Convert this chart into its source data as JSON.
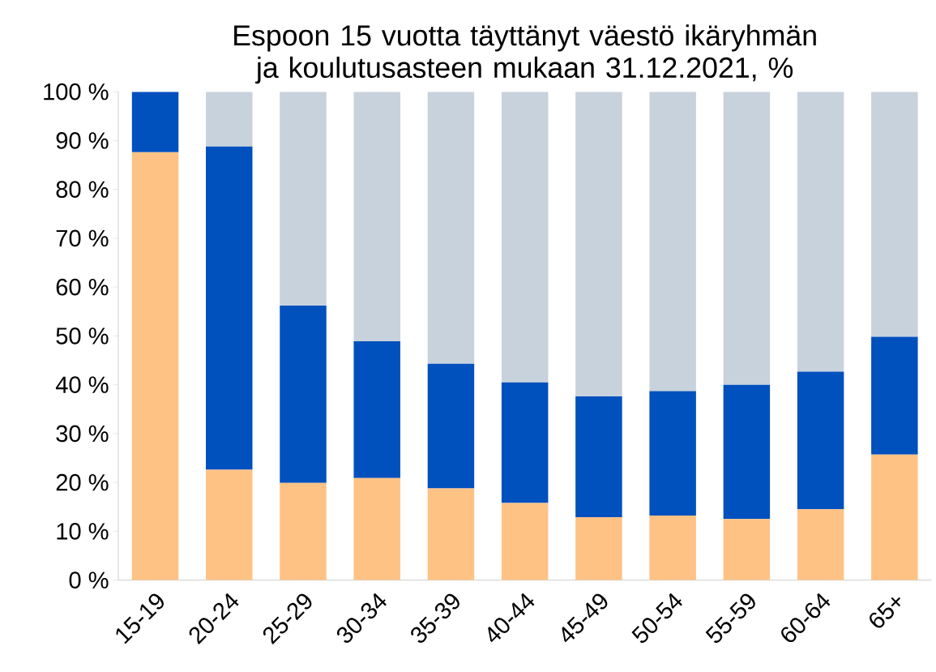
{
  "chart_data": {
    "type": "bar",
    "stacked": true,
    "title": "Espoon 15 vuotta täyttänyt väestö ikäryhmän ja koulutusasteen mukaan 31.12.2021, %",
    "categories": [
      "15-19",
      "20-24",
      "25-29",
      "30-34",
      "35-39",
      "40-44",
      "45-49",
      "50-54",
      "55-59",
      "60-64",
      "65+"
    ],
    "series": [
      {
        "color": "#ffc285",
        "values": [
          87.6,
          22.6,
          19.9,
          20.9,
          18.8,
          15.8,
          12.9,
          13.2,
          12.5,
          14.5,
          25.7
        ]
      },
      {
        "color": "#0050be",
        "values": [
          12.4,
          66.2,
          36.3,
          28.0,
          25.5,
          24.7,
          24.7,
          25.5,
          27.5,
          28.2,
          24.1
        ]
      },
      {
        "color": "#c8d2dc",
        "values": [
          0,
          11.2,
          43.8,
          51.1,
          55.7,
          59.5,
          62.4,
          61.3,
          60.0,
          57.3,
          50.2
        ]
      }
    ],
    "ylim": [
      0,
      100
    ],
    "yticks": [
      {
        "value": 0,
        "label": "0 %"
      },
      {
        "value": 10,
        "label": "10 %"
      },
      {
        "value": 20,
        "label": "20 %"
      },
      {
        "value": 30,
        "label": "30 %"
      },
      {
        "value": 40,
        "label": "40 %"
      },
      {
        "value": 50,
        "label": "50 %"
      },
      {
        "value": 60,
        "label": "60 %"
      },
      {
        "value": 70,
        "label": "70 %"
      },
      {
        "value": 80,
        "label": "80 %"
      },
      {
        "value": 90,
        "label": "90 %"
      },
      {
        "value": 100,
        "label": "100 %"
      }
    ],
    "grid": false
  }
}
